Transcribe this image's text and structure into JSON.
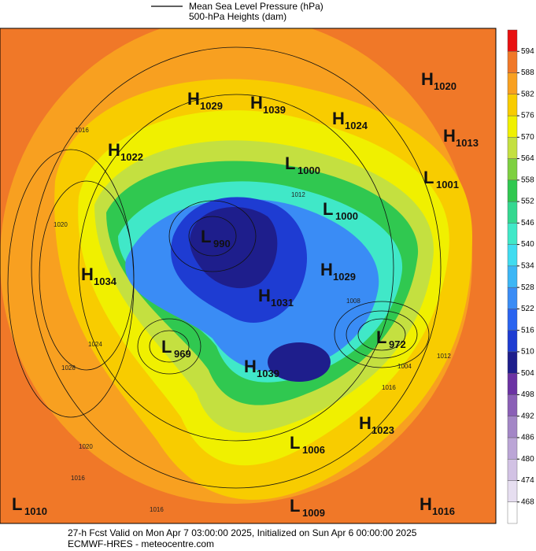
{
  "header": {
    "legend_line_label": "Mean Sea Level Pressure (hPa)",
    "subtitle": "500-hPa Heights (dam)"
  },
  "centers": [
    {
      "letter": "H",
      "value": 1020
    },
    {
      "letter": "H",
      "value": 1029
    },
    {
      "letter": "H",
      "value": 1039
    },
    {
      "letter": "H",
      "value": 1024
    },
    {
      "letter": "H",
      "value": 1013
    },
    {
      "letter": "H",
      "value": 1022
    },
    {
      "letter": "L",
      "value": 1000
    },
    {
      "letter": "L",
      "value": 1001
    },
    {
      "letter": "L",
      "value": 1000
    },
    {
      "letter": "L",
      "value": 990
    },
    {
      "letter": "H",
      "value": 1034
    },
    {
      "letter": "H",
      "value": 1029
    },
    {
      "letter": "H",
      "value": 1031
    },
    {
      "letter": "L",
      "value": 972
    },
    {
      "letter": "L",
      "value": 969
    },
    {
      "letter": "H",
      "value": 1039
    },
    {
      "letter": "H",
      "value": 1023
    },
    {
      "letter": "L",
      "value": 1006
    },
    {
      "letter": "L",
      "value": 1010
    },
    {
      "letter": "L",
      "value": 1009
    },
    {
      "letter": "H",
      "value": 1016
    }
  ],
  "isobar_labels": [
    1016,
    1020,
    1024,
    1028,
    1012,
    1008,
    1004,
    1016,
    1020,
    1016,
    1012,
    1016
  ],
  "colorbar": {
    "ticks": [
      468,
      474,
      480,
      486,
      492,
      498,
      504,
      510,
      516,
      522,
      528,
      534,
      540,
      546,
      552,
      558,
      564,
      570,
      576,
      582,
      588,
      594
    ],
    "colors": [
      "#ffffff",
      "#e6def0",
      "#d2c2e4",
      "#bba5d6",
      "#a386c6",
      "#8a5fb6",
      "#6b32a3",
      "#1e1e8c",
      "#1e3cd2",
      "#2a64f0",
      "#3a8cf5",
      "#3cb6f5",
      "#40dcf0",
      "#40e8c8",
      "#34d890",
      "#30c850",
      "#7ed040",
      "#c4e040",
      "#f0f000",
      "#f8cc00",
      "#f8a020",
      "#f07828",
      "#e81010"
    ]
  },
  "footer": {
    "line1": "27-h Fcst Valid on Mon Apr  7 03:00:00 2025, Initialized on Sun Apr  6 00:00:00 2025",
    "line2": "ECMWF-HRES  - meteocentre.com"
  }
}
